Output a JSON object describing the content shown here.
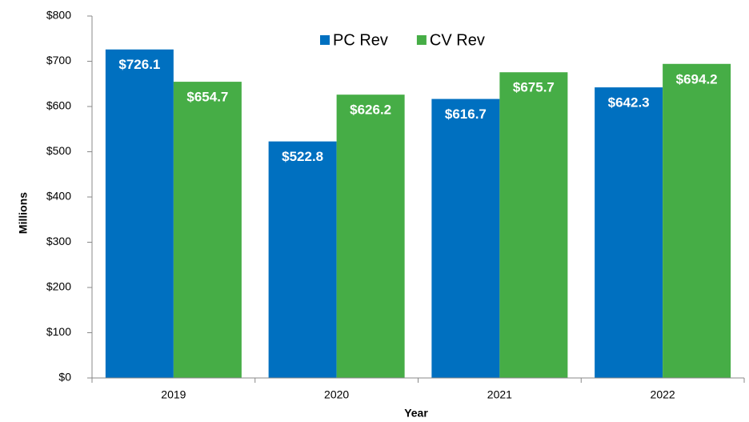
{
  "chart_data": {
    "type": "bar",
    "categories": [
      "2019",
      "2020",
      "2021",
      "2022"
    ],
    "series": [
      {
        "name": "PC Rev",
        "color": "#0070c0",
        "values": [
          726.1,
          522.8,
          616.7,
          642.3
        ],
        "value_labels": [
          "$726.1",
          "$522.8",
          "$616.7",
          "$642.3"
        ]
      },
      {
        "name": "CV Rev",
        "color": "#46ad46",
        "values": [
          654.7,
          626.2,
          675.7,
          694.2
        ],
        "value_labels": [
          "$654.7",
          "$626.2",
          "$675.7",
          "$694.2"
        ]
      }
    ],
    "x_label": "Year",
    "y_label": "Millions",
    "ylim": [
      0,
      800
    ],
    "yticks": [
      {
        "value": 0,
        "label": "$0"
      },
      {
        "value": 100,
        "label": "$100"
      },
      {
        "value": 200,
        "label": "$200"
      },
      {
        "value": 300,
        "label": "$300"
      },
      {
        "value": 400,
        "label": "$400"
      },
      {
        "value": 500,
        "label": "$500"
      },
      {
        "value": 600,
        "label": "$600"
      },
      {
        "value": 700,
        "label": "$700"
      },
      {
        "value": 800,
        "label": "$800"
      }
    ],
    "grid": false,
    "legend": "top"
  }
}
